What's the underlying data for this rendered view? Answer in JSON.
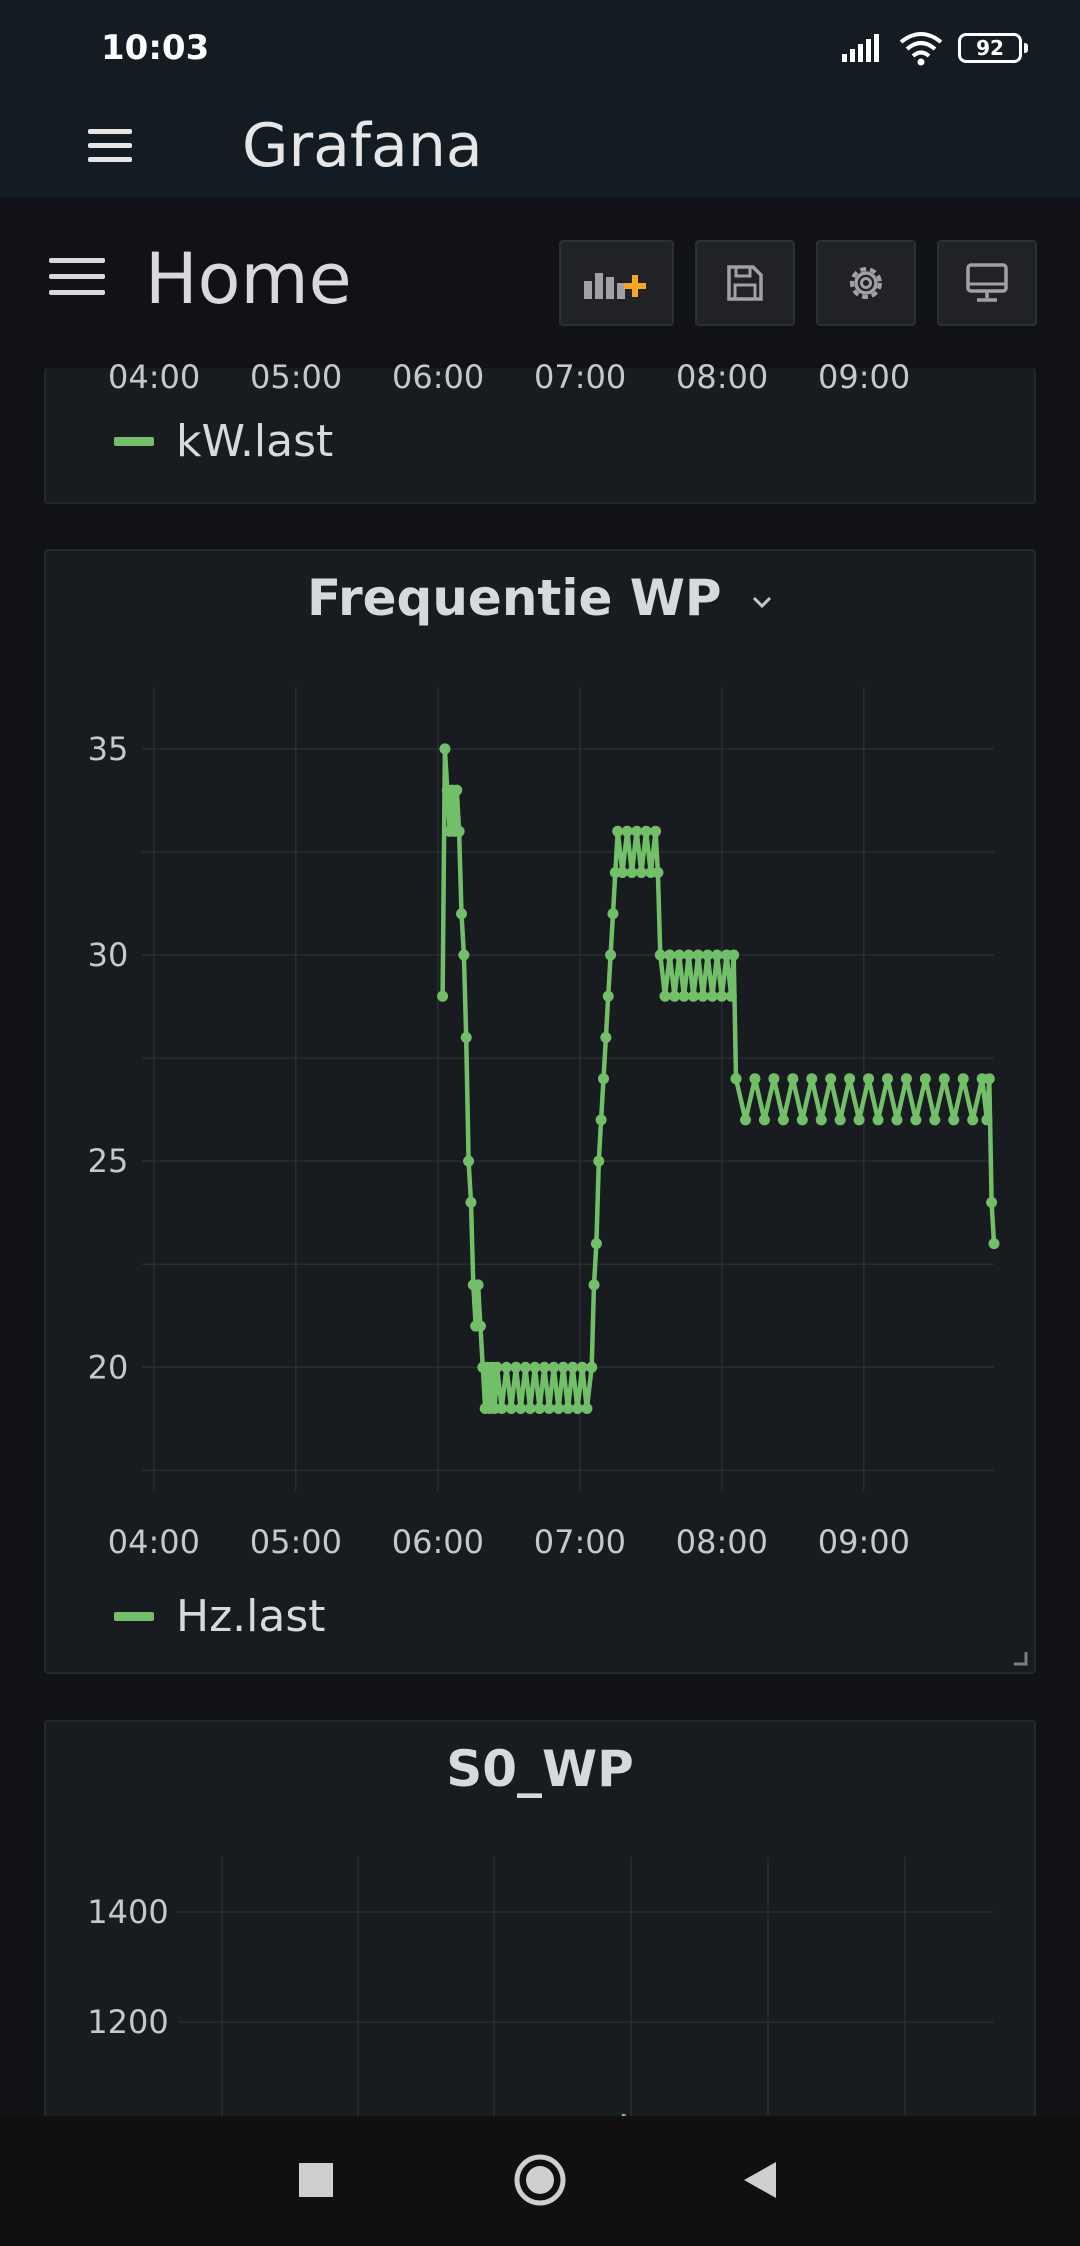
{
  "status_bar": {
    "time": "10:03",
    "battery": "92"
  },
  "app_bar": {
    "title": "Grafana"
  },
  "dashboard": {
    "title": "Home",
    "toolbar": [
      "add-panel",
      "save",
      "settings",
      "tv-mode"
    ]
  },
  "panels": [
    {
      "id": "panel-power",
      "x_ticks": [
        "04:00",
        "05:00",
        "06:00",
        "07:00",
        "08:00",
        "09:00"
      ],
      "legend": "kW.last"
    },
    {
      "id": "panel-frequency",
      "title": "Frequentie WP",
      "y_ticks": [
        "35",
        "30",
        "25",
        "20"
      ],
      "x_ticks": [
        "04:00",
        "05:00",
        "06:00",
        "07:00",
        "08:00",
        "09:00"
      ],
      "legend": "Hz.last"
    },
    {
      "id": "panel-s0",
      "title": "S0_WP",
      "y_ticks": [
        "1400",
        "1200"
      ]
    }
  ],
  "chart_data": {
    "type": "line",
    "title": "Frequentie WP",
    "xlabel": "",
    "ylabel": "",
    "x_range": [
      "03:55",
      "09:55"
    ],
    "ylim": [
      17,
      36.5
    ],
    "grid": true,
    "legend": "bottom-left",
    "color": "#73bf69",
    "series": [
      {
        "name": "Hz.last",
        "x": [
          "06:02",
          "06:03",
          "06:04",
          "06:05",
          "06:06",
          "06:07",
          "06:08",
          "06:09",
          "06:10",
          "06:11",
          "06:12",
          "06:13",
          "06:14",
          "06:15",
          "06:16",
          "06:17",
          "06:18",
          "06:19",
          "06:20",
          "06:21",
          "06:22",
          "06:23",
          "06:24",
          "06:25",
          "06:27",
          "06:29",
          "06:31",
          "06:33",
          "06:35",
          "06:37",
          "06:39",
          "06:41",
          "06:43",
          "06:45",
          "06:47",
          "06:49",
          "06:51",
          "06:53",
          "06:55",
          "06:57",
          "06:59",
          "07:01",
          "07:03",
          "07:05",
          "07:06",
          "07:07",
          "07:08",
          "07:09",
          "07:10",
          "07:11",
          "07:12",
          "07:13",
          "07:14",
          "07:15",
          "07:16",
          "07:18",
          "07:20",
          "07:22",
          "07:24",
          "07:26",
          "07:28",
          "07:30",
          "07:32",
          "07:33",
          "07:34",
          "07:36",
          "07:38",
          "07:40",
          "07:42",
          "07:44",
          "07:46",
          "07:48",
          "07:50",
          "07:52",
          "07:54",
          "07:56",
          "07:58",
          "08:00",
          "08:02",
          "08:04",
          "08:05",
          "08:06",
          "08:10",
          "08:14",
          "08:18",
          "08:22",
          "08:26",
          "08:30",
          "08:34",
          "08:38",
          "08:42",
          "08:46",
          "08:50",
          "08:54",
          "08:58",
          "09:02",
          "09:06",
          "09:10",
          "09:14",
          "09:18",
          "09:22",
          "09:26",
          "09:30",
          "09:34",
          "09:38",
          "09:42",
          "09:46",
          "09:50",
          "09:52",
          "09:53",
          "09:54",
          "09:55"
        ],
        "values": [
          29,
          35,
          34,
          33,
          34,
          33,
          34,
          33,
          31,
          30,
          28,
          25,
          24,
          22,
          21,
          22,
          21,
          20,
          19,
          20,
          19,
          20,
          19,
          20,
          19,
          20,
          19,
          20,
          19,
          20,
          19,
          20,
          19,
          20,
          19,
          20,
          19,
          20,
          19,
          20,
          19,
          20,
          19,
          20,
          22,
          23,
          25,
          26,
          27,
          28,
          29,
          30,
          31,
          32,
          33,
          32,
          33,
          32,
          33,
          32,
          33,
          32,
          33,
          32,
          30,
          29,
          30,
          29,
          30,
          29,
          30,
          29,
          30,
          29,
          30,
          29,
          30,
          29,
          30,
          29,
          30,
          27,
          26,
          27,
          26,
          27,
          26,
          27,
          26,
          27,
          26,
          27,
          26,
          27,
          26,
          27,
          26,
          27,
          26,
          27,
          26,
          27,
          26,
          27,
          26,
          27,
          26,
          27,
          26,
          27,
          24,
          23
        ]
      }
    ]
  },
  "s0_chart": {
    "type": "line",
    "title": "S0_WP",
    "yticks": [
      1400,
      1200
    ]
  }
}
